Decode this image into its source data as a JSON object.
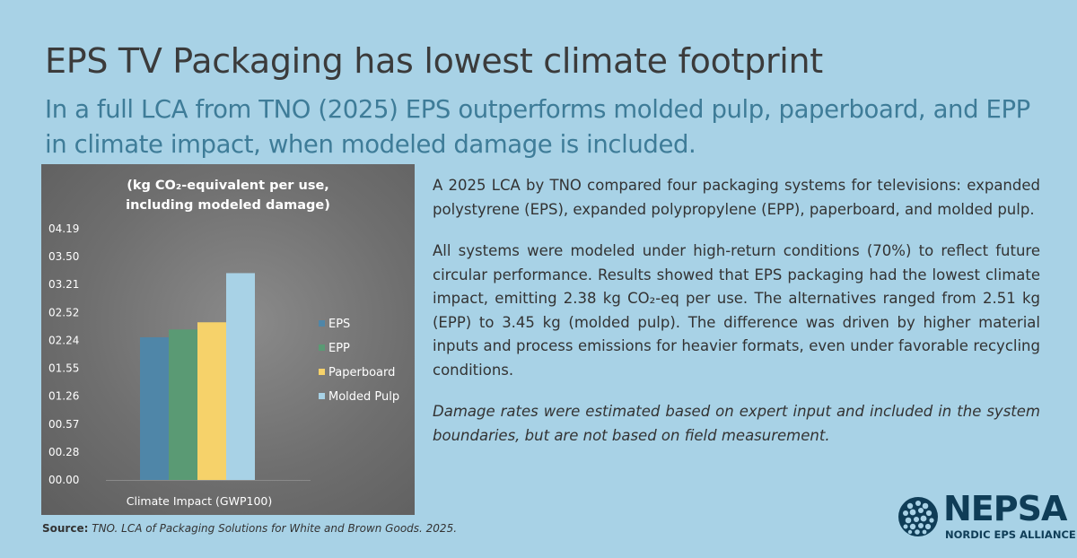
{
  "title": "EPS TV Packaging has lowest climate footprint",
  "subtitle": "In a full LCA from TNO (2025) EPS outperforms molded pulp, paperboard, and EPP in climate impact, when modeled damage is included.",
  "paragraphs": [
    "A 2025 LCA by TNO compared four packaging systems for televisions: expanded polystyrene (EPS), expanded polypropylene (EPP), paperboard, and molded pulp.",
    "All systems were modeled under high-return conditions (70%) to reflect future circular performance. Results showed that EPS packaging had the lowest climate impact, emitting 2.38 kg CO₂-eq per use. The alternatives ranged from 2.51 kg (EPP) to 3.45 kg (molded pulp). The difference was driven by higher material inputs and process emissions for heavier formats, even under favorable recycling conditions."
  ],
  "note": "Damage rates were estimated based on expert input and included in the system boundaries, but are not based on field measurement.",
  "source": {
    "label": "Source:",
    "text": "TNO. LCA of Packaging Solutions for White and Brown Goods. 2025."
  },
  "logo": {
    "name": "NEPSA",
    "tagline": "NORDIC EPS ALLIANCE",
    "color": "#0f3d57"
  },
  "chart_data": {
    "type": "bar",
    "title_lines": [
      "(kg CO₂-equivalent per use,",
      "including modeled damage)"
    ],
    "categories": [
      "Climate Impact (GWP100)"
    ],
    "series": [
      {
        "name": "EPS",
        "values": [
          2.38
        ],
        "color": "#4f86a8"
      },
      {
        "name": "EPP",
        "values": [
          2.51
        ],
        "color": "#5a9a74"
      },
      {
        "name": "Paperboard",
        "values": [
          2.63
        ],
        "color": "#f6d26a"
      },
      {
        "name": "Molded Pulp",
        "values": [
          3.45
        ],
        "color": "#a8d2e6"
      }
    ],
    "y_tick_labels": [
      "00.00",
      "00.28",
      "00.57",
      "01.26",
      "01.55",
      "02.24",
      "02.52",
      "03.21",
      "03.50",
      "04.19"
    ],
    "ylim": [
      0,
      4.19
    ],
    "grid": false,
    "legend_position": "right"
  }
}
